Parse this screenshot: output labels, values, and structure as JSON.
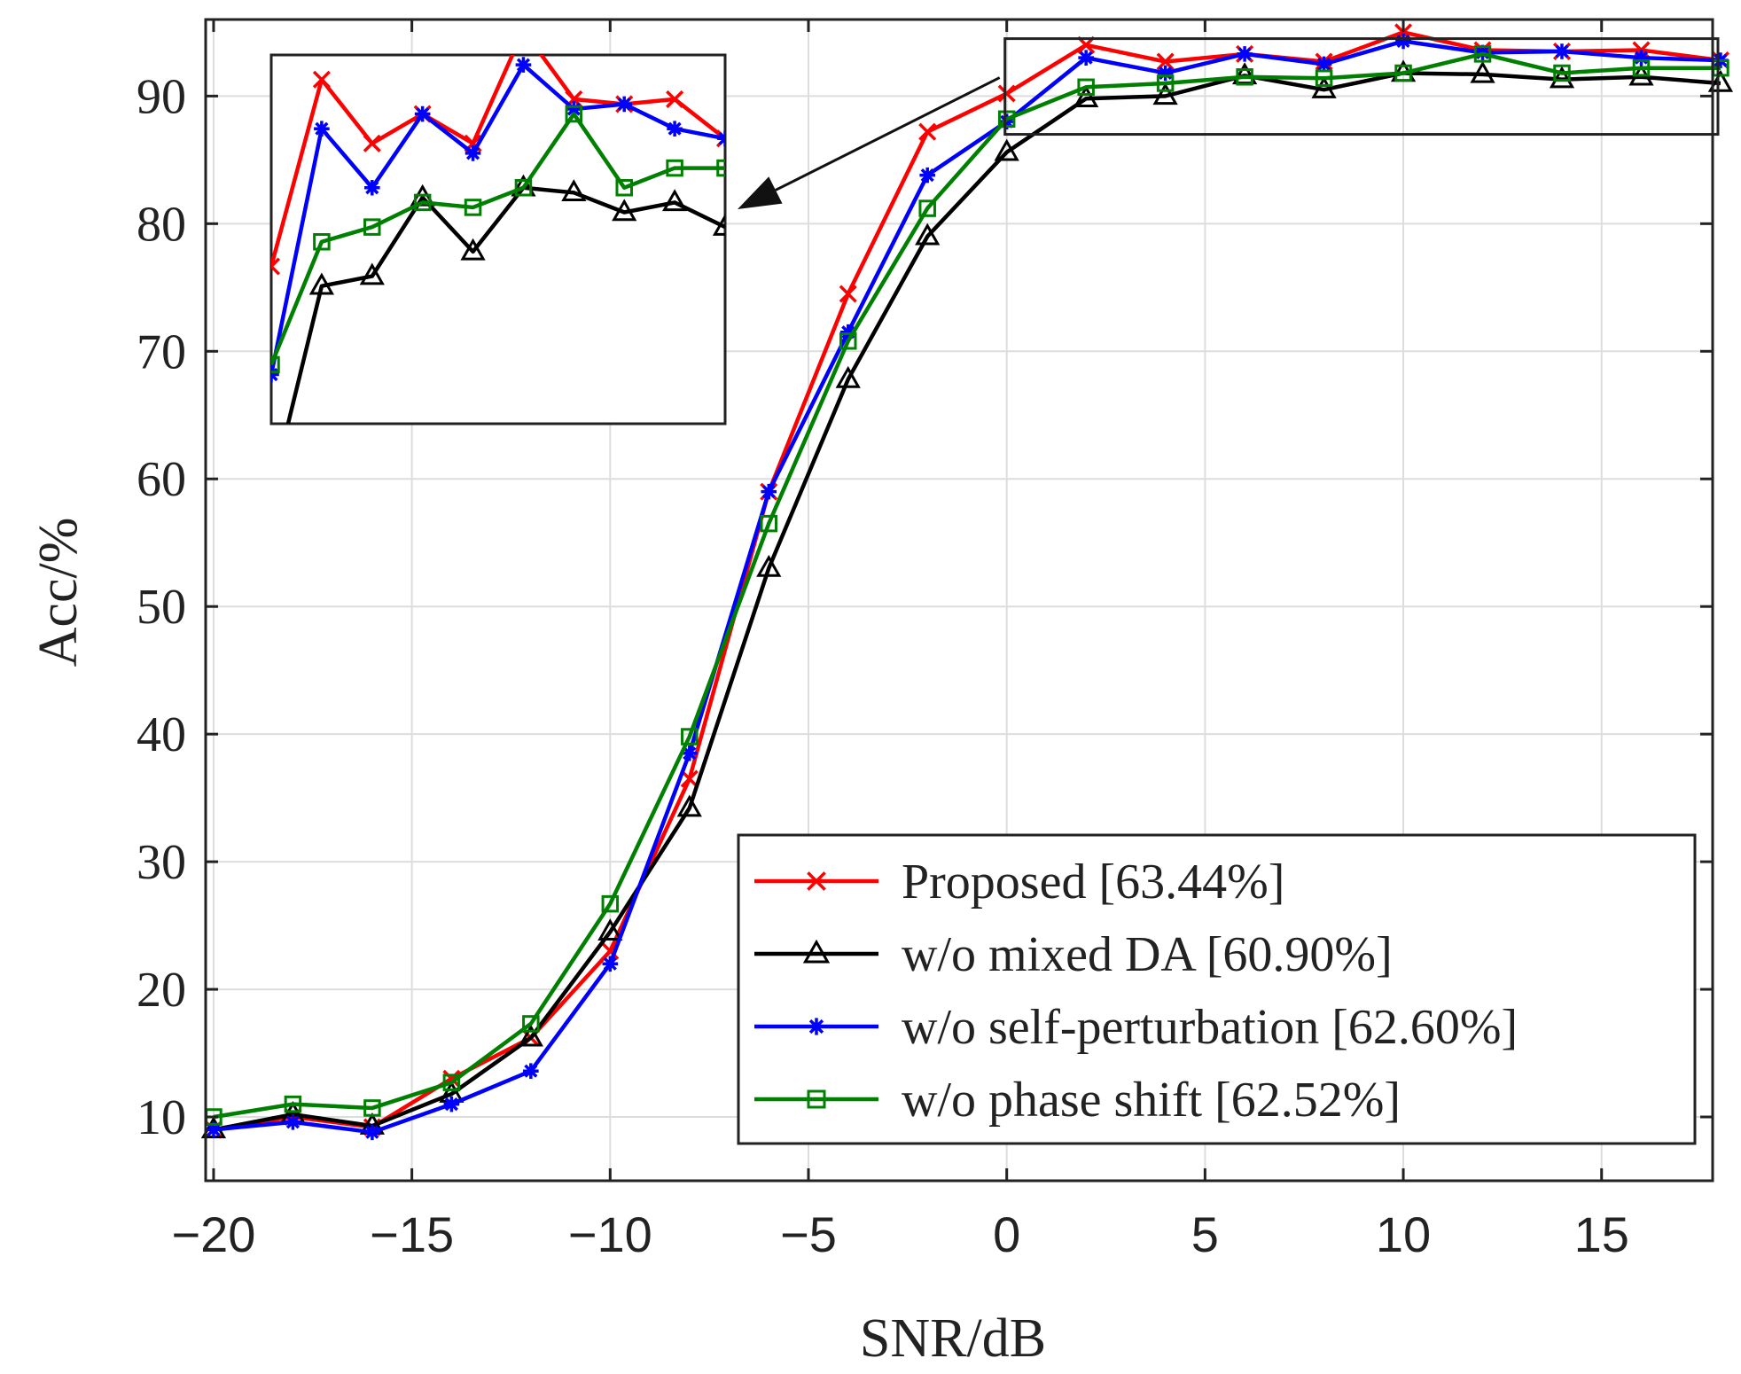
{
  "chart_data": {
    "type": "line",
    "title": "",
    "xlabel": "SNR/dB",
    "ylabel": "Acc/%",
    "xlim": [
      -20.2,
      17.8
    ],
    "ylim": [
      5,
      96
    ],
    "grid": true,
    "x_ticks": [
      -20,
      -15,
      -10,
      -5,
      0,
      5,
      10,
      15
    ],
    "x_tick_labels": [
      "−20",
      "−15",
      "−10",
      "−5",
      "0",
      "5",
      "10",
      "15"
    ],
    "y_ticks": [
      10,
      20,
      30,
      40,
      50,
      60,
      70,
      80,
      90
    ],
    "y_tick_labels": [
      "10",
      "20",
      "30",
      "40",
      "50",
      "60",
      "70",
      "80",
      "90"
    ],
    "x": [
      -20,
      -18,
      -16,
      -14,
      -12,
      -10,
      -8,
      -6,
      -4,
      -2,
      0,
      2,
      4,
      6,
      8,
      10,
      12,
      14,
      16,
      18
    ],
    "series": [
      {
        "name": "Proposed [63.44%]",
        "color": "#ff0000",
        "marker": "x",
        "values": [
          9.0,
          10.0,
          9.2,
          13.0,
          16.2,
          23.0,
          36.5,
          59.0,
          74.5,
          87.2,
          90.2,
          94.0,
          92.7,
          93.3,
          92.7,
          95.0,
          93.6,
          93.5,
          93.6,
          92.8
        ]
      },
      {
        "name": "w/o mixed DA [60.90%]",
        "color": "#000000",
        "marker": "triangle",
        "values": [
          9.0,
          10.2,
          9.3,
          11.8,
          16.2,
          24.5,
          34.2,
          53.0,
          67.8,
          79.0,
          85.6,
          89.8,
          90.0,
          91.6,
          90.5,
          91.8,
          91.7,
          91.3,
          91.5,
          91.0
        ]
      },
      {
        "name": "w/o self-perturbation [62.60%]",
        "color": "#0000ff",
        "marker": "asterisk",
        "values": [
          9.0,
          9.6,
          8.8,
          11.0,
          13.6,
          22.0,
          38.5,
          59.0,
          71.5,
          83.8,
          88.0,
          93.0,
          91.8,
          93.3,
          92.5,
          94.3,
          93.4,
          93.5,
          93.0,
          92.8
        ]
      },
      {
        "name": "w/o phase shift [62.52%]",
        "color": "#008000",
        "marker": "square",
        "values": [
          10.0,
          11.0,
          10.7,
          12.7,
          17.3,
          26.7,
          39.8,
          56.5,
          70.8,
          81.2,
          88.2,
          90.7,
          91.0,
          91.5,
          91.4,
          91.8,
          93.3,
          91.8,
          92.2,
          92.2
        ]
      }
    ],
    "legend": {
      "placement": "bottom-right",
      "entries": [
        "Proposed [63.44%]",
        "w/o mixed DA [60.90%]",
        "w/o self-perturbation [62.60%]",
        "w/o phase shift [62.52%]"
      ]
    },
    "inset": {
      "description": "zoom of SNR 0 to 18 dB",
      "source_xlim": [
        0,
        18
      ],
      "source_ylim": [
        87,
        94.5
      ],
      "arrow": true
    }
  }
}
